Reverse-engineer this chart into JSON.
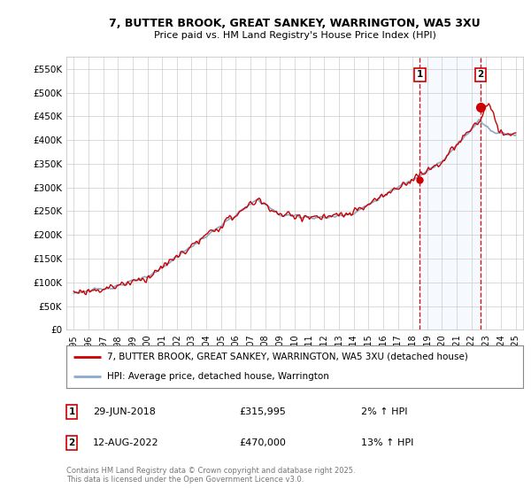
{
  "title": "7, BUTTER BROOK, GREAT SANKEY, WARRINGTON, WA5 3XU",
  "subtitle": "Price paid vs. HM Land Registry's House Price Index (HPI)",
  "ylabel_ticks": [
    "£0",
    "£50K",
    "£100K",
    "£150K",
    "£200K",
    "£250K",
    "£300K",
    "£350K",
    "£400K",
    "£450K",
    "£500K",
    "£550K"
  ],
  "ytick_vals": [
    0,
    50000,
    100000,
    150000,
    200000,
    250000,
    300000,
    350000,
    400000,
    450000,
    500000,
    550000
  ],
  "ylim": [
    0,
    575000
  ],
  "xlim_start": 1994.5,
  "xlim_end": 2025.5,
  "sale1_x": 2018.49,
  "sale1_price": 315995,
  "sale2_x": 2022.61,
  "sale2_price": 470000,
  "legend_line1": "7, BUTTER BROOK, GREAT SANKEY, WARRINGTON, WA5 3XU (detached house)",
  "legend_line2": "HPI: Average price, detached house, Warrington",
  "footnote": "Contains HM Land Registry data © Crown copyright and database right 2025.\nThis data is licensed under the Open Government Licence v3.0.",
  "line_color_red": "#cc0000",
  "line_color_blue": "#88aacc",
  "shade_color": "#ddeeff",
  "bg_color": "#ffffff",
  "grid_color": "#cccccc",
  "annotation_table": [
    [
      "1",
      "29-JUN-2018",
      "£315,995",
      "2% ↑ HPI"
    ],
    [
      "2",
      "12-AUG-2022",
      "£470,000",
      "13% ↑ HPI"
    ]
  ]
}
